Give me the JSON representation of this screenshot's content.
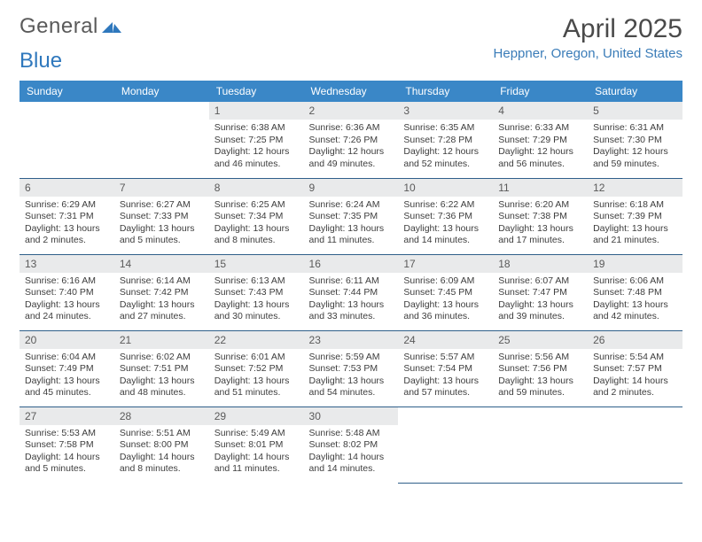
{
  "brand": {
    "part1": "General",
    "part2": "Blue",
    "color_main": "#5a5a5a",
    "color_accent": "#2f78bd"
  },
  "title": "April 2025",
  "location": "Heppner, Oregon, United States",
  "colors": {
    "header_bg": "#3a87c7",
    "header_fg": "#ffffff",
    "daynum_bg": "#e9eaeb",
    "row_divider": "#2f5f8a",
    "text": "#3d3d3d",
    "location": "#3a7cb8"
  },
  "weekdays": [
    "Sunday",
    "Monday",
    "Tuesday",
    "Wednesday",
    "Thursday",
    "Friday",
    "Saturday"
  ],
  "leading_blanks": 2,
  "days": [
    {
      "n": 1,
      "sunrise": "6:38 AM",
      "sunset": "7:25 PM",
      "daylight": "12 hours and 46 minutes."
    },
    {
      "n": 2,
      "sunrise": "6:36 AM",
      "sunset": "7:26 PM",
      "daylight": "12 hours and 49 minutes."
    },
    {
      "n": 3,
      "sunrise": "6:35 AM",
      "sunset": "7:28 PM",
      "daylight": "12 hours and 52 minutes."
    },
    {
      "n": 4,
      "sunrise": "6:33 AM",
      "sunset": "7:29 PM",
      "daylight": "12 hours and 56 minutes."
    },
    {
      "n": 5,
      "sunrise": "6:31 AM",
      "sunset": "7:30 PM",
      "daylight": "12 hours and 59 minutes."
    },
    {
      "n": 6,
      "sunrise": "6:29 AM",
      "sunset": "7:31 PM",
      "daylight": "13 hours and 2 minutes."
    },
    {
      "n": 7,
      "sunrise": "6:27 AM",
      "sunset": "7:33 PM",
      "daylight": "13 hours and 5 minutes."
    },
    {
      "n": 8,
      "sunrise": "6:25 AM",
      "sunset": "7:34 PM",
      "daylight": "13 hours and 8 minutes."
    },
    {
      "n": 9,
      "sunrise": "6:24 AM",
      "sunset": "7:35 PM",
      "daylight": "13 hours and 11 minutes."
    },
    {
      "n": 10,
      "sunrise": "6:22 AM",
      "sunset": "7:36 PM",
      "daylight": "13 hours and 14 minutes."
    },
    {
      "n": 11,
      "sunrise": "6:20 AM",
      "sunset": "7:38 PM",
      "daylight": "13 hours and 17 minutes."
    },
    {
      "n": 12,
      "sunrise": "6:18 AM",
      "sunset": "7:39 PM",
      "daylight": "13 hours and 21 minutes."
    },
    {
      "n": 13,
      "sunrise": "6:16 AM",
      "sunset": "7:40 PM",
      "daylight": "13 hours and 24 minutes."
    },
    {
      "n": 14,
      "sunrise": "6:14 AM",
      "sunset": "7:42 PM",
      "daylight": "13 hours and 27 minutes."
    },
    {
      "n": 15,
      "sunrise": "6:13 AM",
      "sunset": "7:43 PM",
      "daylight": "13 hours and 30 minutes."
    },
    {
      "n": 16,
      "sunrise": "6:11 AM",
      "sunset": "7:44 PM",
      "daylight": "13 hours and 33 minutes."
    },
    {
      "n": 17,
      "sunrise": "6:09 AM",
      "sunset": "7:45 PM",
      "daylight": "13 hours and 36 minutes."
    },
    {
      "n": 18,
      "sunrise": "6:07 AM",
      "sunset": "7:47 PM",
      "daylight": "13 hours and 39 minutes."
    },
    {
      "n": 19,
      "sunrise": "6:06 AM",
      "sunset": "7:48 PM",
      "daylight": "13 hours and 42 minutes."
    },
    {
      "n": 20,
      "sunrise": "6:04 AM",
      "sunset": "7:49 PM",
      "daylight": "13 hours and 45 minutes."
    },
    {
      "n": 21,
      "sunrise": "6:02 AM",
      "sunset": "7:51 PM",
      "daylight": "13 hours and 48 minutes."
    },
    {
      "n": 22,
      "sunrise": "6:01 AM",
      "sunset": "7:52 PM",
      "daylight": "13 hours and 51 minutes."
    },
    {
      "n": 23,
      "sunrise": "5:59 AM",
      "sunset": "7:53 PM",
      "daylight": "13 hours and 54 minutes."
    },
    {
      "n": 24,
      "sunrise": "5:57 AM",
      "sunset": "7:54 PM",
      "daylight": "13 hours and 57 minutes."
    },
    {
      "n": 25,
      "sunrise": "5:56 AM",
      "sunset": "7:56 PM",
      "daylight": "13 hours and 59 minutes."
    },
    {
      "n": 26,
      "sunrise": "5:54 AM",
      "sunset": "7:57 PM",
      "daylight": "14 hours and 2 minutes."
    },
    {
      "n": 27,
      "sunrise": "5:53 AM",
      "sunset": "7:58 PM",
      "daylight": "14 hours and 5 minutes."
    },
    {
      "n": 28,
      "sunrise": "5:51 AM",
      "sunset": "8:00 PM",
      "daylight": "14 hours and 8 minutes."
    },
    {
      "n": 29,
      "sunrise": "5:49 AM",
      "sunset": "8:01 PM",
      "daylight": "14 hours and 11 minutes."
    },
    {
      "n": 30,
      "sunrise": "5:48 AM",
      "sunset": "8:02 PM",
      "daylight": "14 hours and 14 minutes."
    }
  ],
  "labels": {
    "sunrise": "Sunrise:",
    "sunset": "Sunset:",
    "daylight": "Daylight:"
  }
}
